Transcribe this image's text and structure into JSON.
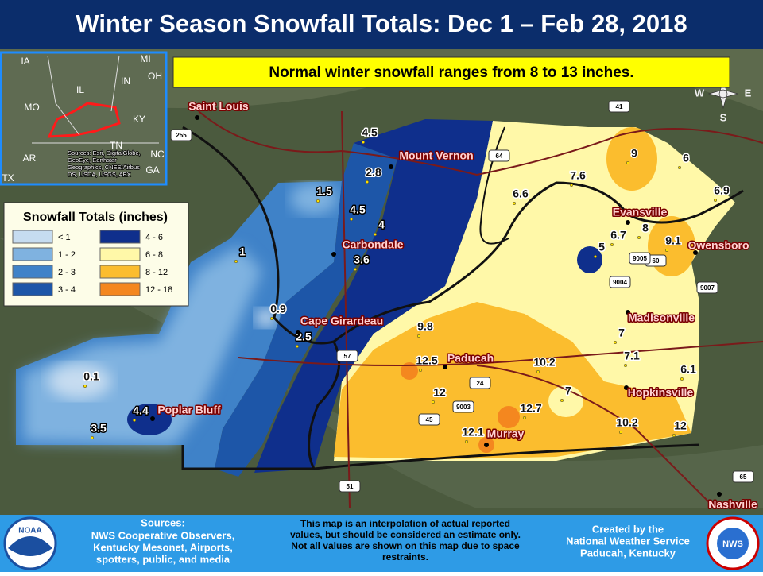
{
  "title": "Winter Season Snowfall Totals: Dec 1 – Feb 28, 2018",
  "banner": "Normal winter snowfall ranges from 8 to 13 inches.",
  "inset": {
    "labels": [
      "IA",
      "MI",
      "IL",
      "IN",
      "OH",
      "MO",
      "KY",
      "AR",
      "TN",
      "NC",
      "GA",
      "TX"
    ],
    "source": [
      "Sources: Esri, DigitalGlobe,",
      "GeoEye, Earthstar",
      "Geographics, CNES/Airbus",
      "DS, USDA, USGS, AEX"
    ]
  },
  "legend": {
    "title": "Snowfall Totals (inches)",
    "items": [
      {
        "label": "< 1",
        "color": "#c6dcf0"
      },
      {
        "label": "1 - 2",
        "color": "#7fb2e0"
      },
      {
        "label": "2 - 3",
        "color": "#3f82c8"
      },
      {
        "label": "3 - 4",
        "color": "#1d56a8"
      },
      {
        "label": "4 - 6",
        "color": "#0f2f8c"
      },
      {
        "label": "6 - 8",
        "color": "#fff8a8"
      },
      {
        "label": "8 - 12",
        "color": "#fbbd2e"
      },
      {
        "label": "12 - 18",
        "color": "#f4871f"
      }
    ]
  },
  "cities": [
    "Saint Louis",
    "Mount Vernon",
    "Carbondale",
    "Cape Girardeau",
    "Poplar Bluff",
    "Paducah",
    "Murray",
    "Evansville",
    "Owensboro",
    "Madisonville",
    "Hopkinsville",
    "Nashville"
  ],
  "snowfall": [
    "4.5",
    "2.8",
    "1.5",
    "4.5",
    "4",
    "3.6",
    "1",
    "0.9",
    "2.5",
    "0.1",
    "4.4",
    "3.5",
    "9.8",
    "12.5",
    "12",
    "12.1",
    "12.7",
    "10.2",
    "7",
    "10.2",
    "12",
    "6.6",
    "7.6",
    "9",
    "6",
    "6.9",
    "6.7",
    "8",
    "9.1",
    "5",
    "7",
    "7.1",
    "6.1"
  ],
  "highways": [
    "255",
    "64",
    "57",
    "24",
    "41",
    "60",
    "45",
    "51",
    "65",
    "9004",
    "9005",
    "9007",
    "9003"
  ],
  "compass": [
    "W",
    "E",
    "S"
  ],
  "footer": {
    "sources_heading": "Sources:",
    "sources": [
      "NWS Cooperative Observers,",
      "Kentucky Mesonet, Airports,",
      "spotters, public, and media"
    ],
    "disclaimer": [
      "This map is an interpolation of actual reported",
      "values, but should be considered an estimate only.",
      "Not all values are shown on this map due to space",
      "restraints."
    ],
    "credit": [
      "Created by the",
      "National Weather Service",
      "Paducah, Kentucky"
    ]
  },
  "logos": [
    "NOAA",
    "NWS"
  ]
}
